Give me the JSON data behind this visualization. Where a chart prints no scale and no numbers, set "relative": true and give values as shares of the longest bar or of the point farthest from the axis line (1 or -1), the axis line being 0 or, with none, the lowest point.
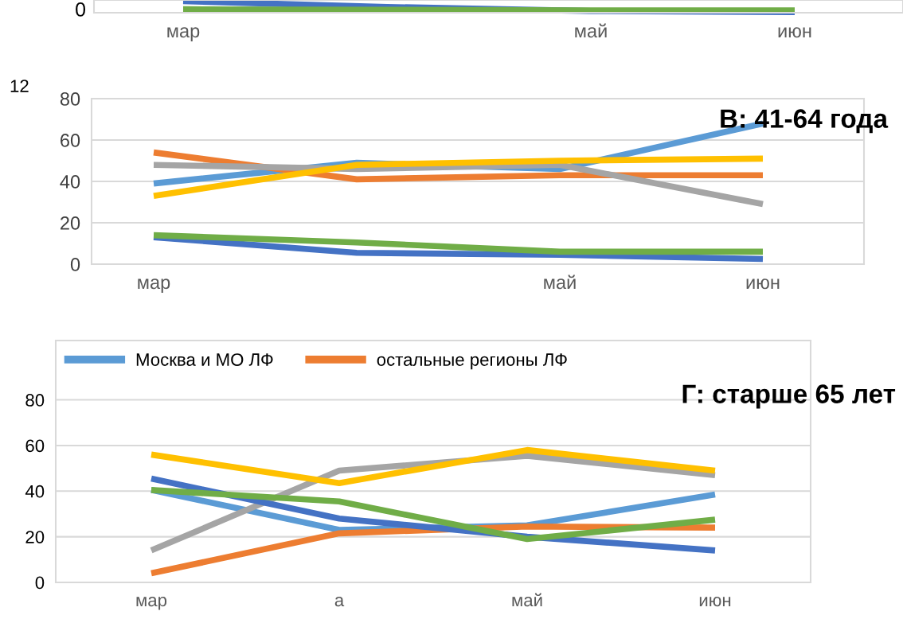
{
  "chart_data": [
    {
      "type": "line",
      "categories": [
        "мар",
        null,
        "май",
        "июн"
      ],
      "relative": true,
      "annotations": [
        "0"
      ],
      "series": [
        {
          "color": "#4472c4",
          "values": [
            1,
            0.5,
            0.15,
            0.05
          ]
        },
        {
          "color": "#70ad47",
          "values": [
            0.3,
            0.25,
            0.2,
            0.2
          ]
        }
      ]
    },
    {
      "type": "line",
      "title": "В: 41-64 года",
      "categories": [
        "мар",
        null,
        "май",
        "июн"
      ],
      "ylim": [
        0,
        80
      ],
      "yticks": [
        0,
        20,
        40,
        60,
        80
      ],
      "grid": "y",
      "annotations": [
        "12"
      ],
      "series": [
        {
          "color": "#5b9bd5",
          "values": [
            39,
            49,
            46,
            68
          ]
        },
        {
          "color": "#ed7d31",
          "values": [
            54,
            41,
            43,
            43
          ]
        },
        {
          "color": "#a5a5a5",
          "values": [
            48,
            46,
            48,
            29
          ]
        },
        {
          "color": "#ffc000",
          "values": [
            33,
            48,
            50,
            51
          ]
        },
        {
          "color": "#4472c4",
          "values": [
            13,
            5.5,
            4.5,
            2.5
          ]
        },
        {
          "color": "#70ad47",
          "values": [
            14,
            10.5,
            6,
            6
          ]
        }
      ]
    },
    {
      "type": "line",
      "title": "Г: старше 65 лет",
      "categories": [
        "мар",
        "а",
        "май",
        "июн"
      ],
      "ylim": [
        0,
        106
      ],
      "yticks": [
        0,
        20,
        40,
        60,
        80
      ],
      "grid": "y",
      "legend": "top left",
      "series": [
        {
          "name": "Москва и МО ЛФ",
          "color": "#5b9bd5",
          "values": [
            40.5,
            23,
            25,
            38.5
          ]
        },
        {
          "name": "остальные регионы ЛФ",
          "color": "#ed7d31",
          "values": [
            4,
            21.5,
            24.5,
            24
          ]
        },
        {
          "color": "#a5a5a5",
          "values": [
            14,
            49,
            55.5,
            47
          ]
        },
        {
          "color": "#ffc000",
          "values": [
            56,
            43.5,
            58,
            49
          ]
        },
        {
          "color": "#4472c4",
          "values": [
            45.5,
            28,
            20,
            14
          ]
        },
        {
          "color": "#70ad47",
          "values": [
            40.5,
            35.5,
            19,
            27.5
          ]
        }
      ]
    }
  ]
}
